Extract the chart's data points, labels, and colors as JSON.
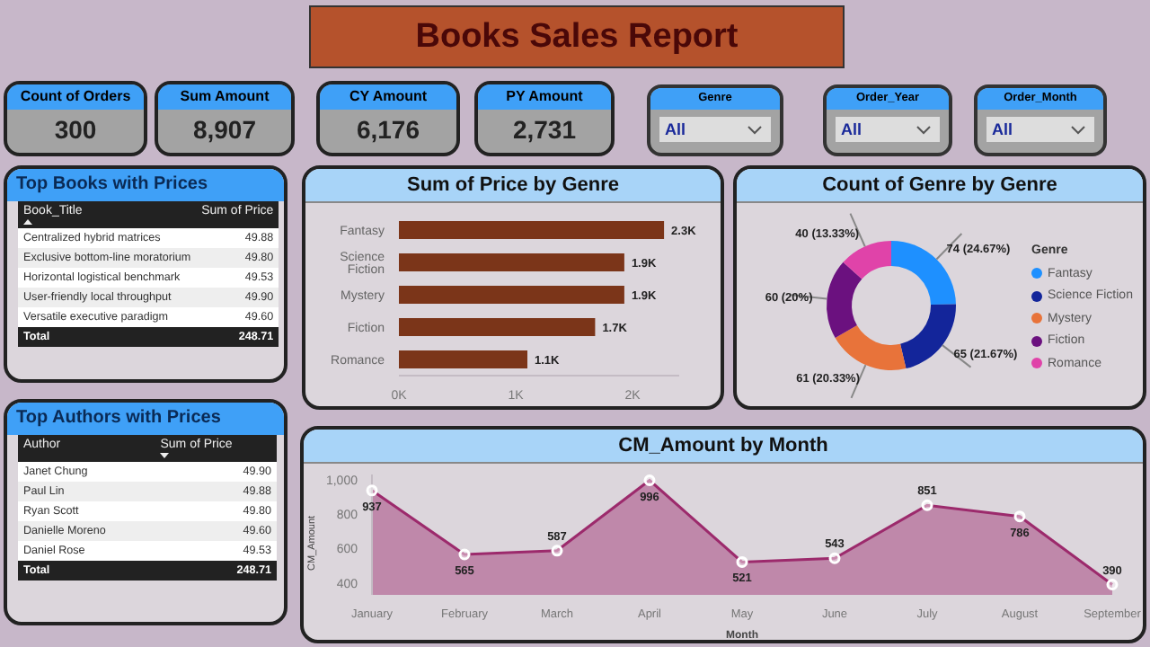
{
  "chart_data": [
    {
      "type": "other",
      "title": "Books Sales Report",
      "categories": [
        "Count of Orders",
        "Sum Amount",
        "CY Amount",
        "PY Amount"
      ],
      "annotations": [
        "300",
        "8,907",
        "6,176",
        "2,731"
      ]
    },
    {
      "type": "other",
      "categories": [
        "Genre",
        "Order_Year",
        "Order_Month"
      ],
      "annotations": [
        "All",
        "All",
        "All"
      ]
    },
    {
      "type": "other",
      "title": "Top Books with Prices",
      "xlabel": "Book_Title",
      "ylabel": "Sum of Price",
      "categories": [
        "Centralized hybrid matrices",
        "Exclusive bottom-line moratorium",
        "Horizontal logistical benchmark",
        "User-friendly local throughput",
        "Versatile executive paradigm"
      ],
      "annotations": [
        "49.88",
        "49.80",
        "49.53",
        "49.90",
        "49.60",
        "Total",
        "248.71"
      ]
    },
    {
      "type": "other",
      "title": "Top Authors with Prices",
      "xlabel": "Author",
      "ylabel": "Sum of Price",
      "categories": [
        "Janet Chung",
        "Paul Lin",
        "Ryan Scott",
        "Danielle Moreno",
        "Daniel Rose"
      ],
      "annotations": [
        "49.90",
        "49.88",
        "49.80",
        "49.60",
        "49.53",
        "Total",
        "248.71"
      ]
    },
    {
      "type": "bar",
      "title": "Sum of Price by Genre",
      "orientation": "horizontal",
      "categories": [
        "Fantasy",
        "Science Fiction",
        "Mystery",
        "Fiction",
        "Romance"
      ],
      "values": [
        2270,
        1930,
        1930,
        1680,
        1100
      ],
      "color": "#7b3519",
      "value_labels": [
        "2.3K",
        "1.9K",
        "1.9K",
        "1.7K",
        "1.1K"
      ],
      "xlim": [
        0,
        2400
      ],
      "xticks": [
        {
          "value": 0,
          "label": "0K"
        },
        {
          "value": 1000,
          "label": "1K"
        },
        {
          "value": 2000,
          "label": "2K"
        }
      ]
    },
    {
      "type": "donut",
      "title": "Count of Genre by Genre",
      "categories": [
        "Fantasy",
        "Science Fiction",
        "Mystery",
        "Fiction",
        "Romance"
      ],
      "values": [
        74,
        65,
        61,
        60,
        40
      ],
      "colors": [
        "#1e90ff",
        "#13259a",
        "#e8733a",
        "#6b117f",
        "#e043a9"
      ],
      "value_labels": [
        "74 (24.67%)",
        "65 (21.67%)",
        "61 (20.33%)",
        "60 (20%)",
        "40 (13.33%)"
      ],
      "legend": "right",
      "legend_title": "Genre"
    },
    {
      "type": "area",
      "title": "CM_Amount by Month",
      "xlabel": "Month",
      "ylabel": "CM_Amount",
      "categories": [
        "January",
        "February",
        "March",
        "April",
        "May",
        "June",
        "July",
        "August",
        "September"
      ],
      "series": [
        {
          "color": "#9c2a6c",
          "values": [
            937,
            565,
            587,
            996,
            521,
            543,
            851,
            786,
            390
          ]
        }
      ],
      "data_labels": true,
      "marker": "circle",
      "ylim": [
        330,
        1030
      ],
      "yticks": [
        400,
        600,
        800,
        {
          "value": 1000,
          "label": "1,000"
        }
      ]
    }
  ]
}
